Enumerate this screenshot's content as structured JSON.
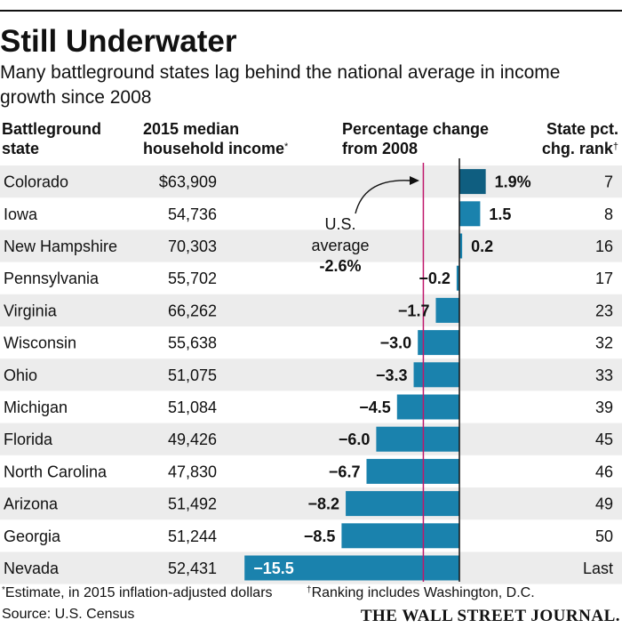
{
  "header": {
    "title": "Still Underwater",
    "subtitle": "Many battleground states lag behind the national average in income growth since 2008"
  },
  "columns": {
    "state_line1": "Battleground",
    "state_line2": "state",
    "income_line1": "2015 median",
    "income_line2": "household income",
    "income_mark": "*",
    "pct_line1": "Percentage change",
    "pct_line2": "from 2008",
    "rank_line1": "State pct.",
    "rank_line2": "chg. rank",
    "rank_mark": "†"
  },
  "annotation": {
    "line1": "U.S.",
    "line2": "average",
    "value": "-2.6%"
  },
  "footer": {
    "note_mark": "*",
    "note_estimate": "Estimate, in 2015 inflation-adjusted dollars",
    "note_rank_mark": "†",
    "note_rank": "Ranking includes Washington, D.C.",
    "source": "Source: U.S. Census",
    "logo": "THE WALL STREET JOURNAL."
  },
  "colors": {
    "bar": "#1a82ad",
    "bar_dark": "#0f5e80",
    "average_line": "#c0186c",
    "row_shade": "#ececec"
  },
  "chart_data": {
    "type": "bar",
    "orientation": "horizontal",
    "title": "Still Underwater",
    "subtitle": "Many battleground states lag behind the national average in income growth since 2008",
    "xlabel": "Percentage change from 2008",
    "reference_line": {
      "label": "U.S. average",
      "value": -2.6
    },
    "xlim": [
      -15.5,
      1.9
    ],
    "categories": [
      "Colorado",
      "Iowa",
      "New Hampshire",
      "Pennsylvania",
      "Virginia",
      "Wisconsin",
      "Ohio",
      "Michigan",
      "Florida",
      "North Carolina",
      "Arizona",
      "Georgia",
      "Nevada"
    ],
    "values": [
      1.9,
      1.5,
      0.2,
      -0.2,
      -1.7,
      -3.0,
      -3.3,
      -4.5,
      -6.0,
      -6.7,
      -8.2,
      -8.5,
      -15.5
    ],
    "value_labels": [
      "1.9%",
      "1.5",
      "0.2",
      "−0.2",
      "−1.7",
      "−3.0",
      "−3.3",
      "−4.5",
      "−6.0",
      "−6.7",
      "−8.2",
      "−8.5",
      "−15.5"
    ],
    "incomes": [
      "$63,909",
      "54,736",
      "70,303",
      "55,702",
      "66,262",
      "55,638",
      "51,075",
      "51,084",
      "49,426",
      "47,830",
      "51,492",
      "51,244",
      "52,431"
    ],
    "ranks": [
      "7",
      "8",
      "16",
      "17",
      "23",
      "32",
      "33",
      "39",
      "45",
      "46",
      "49",
      "50",
      "Last"
    ]
  }
}
